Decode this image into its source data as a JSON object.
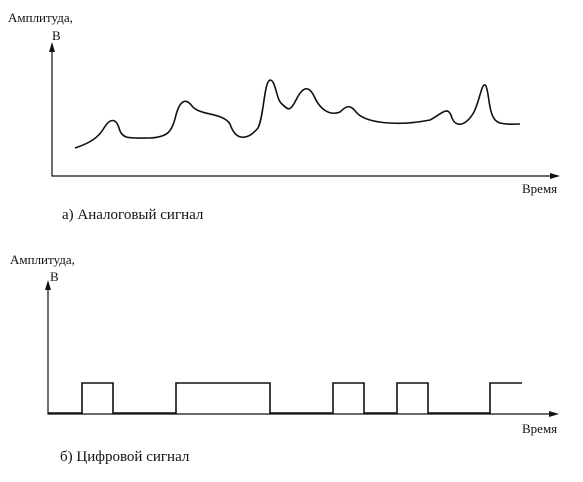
{
  "panels": [
    {
      "y_label": "Амплитуда,",
      "y_unit": "В",
      "x_label": "Время",
      "caption": "а) Аналоговый сигнал"
    },
    {
      "y_label": "Амплитуда,",
      "y_unit": "В",
      "x_label": "Время",
      "caption": "б) Цифровой сигнал"
    }
  ]
}
